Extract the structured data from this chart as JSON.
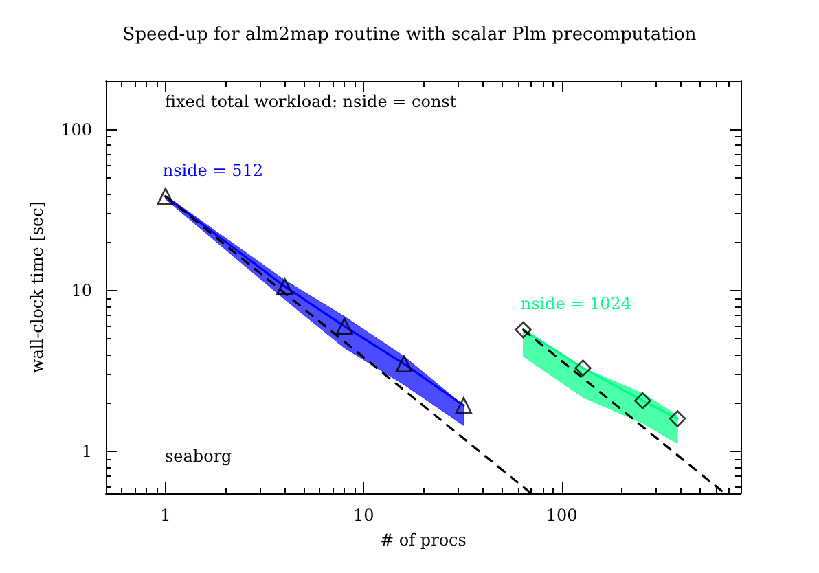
{
  "chart_data": {
    "type": "scatter",
    "title": "Speed-up for alm2map routine with scalar Plm precomputation",
    "xlabel": "# of procs",
    "ylabel": "wall-clock time [sec]",
    "log": "xy",
    "xlim": [
      0.5,
      800
    ],
    "ylim": [
      0.55,
      200
    ],
    "xticks": [
      1,
      10,
      100
    ],
    "yticks": [
      1,
      10,
      100
    ],
    "grid": false,
    "legend": false,
    "annotations": [
      "fixed total workload: nside = const",
      "seaborg"
    ],
    "series": [
      {
        "name": "nside = 512",
        "type": "line",
        "color": "#0000ff",
        "marker": "none",
        "x": [
          1,
          4,
          8,
          16,
          32
        ],
        "values": [
          38.5,
          10.6,
          6.0,
          3.5,
          1.93
        ],
        "lower": [
          37,
          8.8,
          4.4,
          2.6,
          1.45
        ],
        "upper": [
          39,
          11.6,
          6.9,
          3.9,
          1.93
        ]
      },
      {
        "color": "#000000",
        "marker": "triangle",
        "x": [
          1,
          4,
          8,
          16,
          32
        ],
        "values": [
          38.5,
          10.6,
          6.0,
          3.5,
          1.93
        ]
      },
      {
        "name": "nside = 1024",
        "type": "line",
        "color": "#00ff88",
        "marker": "none",
        "x": [
          64,
          128,
          256,
          384
        ],
        "values": [
          5.7,
          3.3,
          2.07,
          1.6
        ],
        "lower": [
          3.9,
          2.17,
          1.5,
          1.12
        ],
        "upper": [
          5.7,
          3.3,
          2.3,
          1.67
        ]
      },
      {
        "color": "#000000",
        "marker": "diamond",
        "x": [
          64,
          128,
          256,
          384
        ],
        "values": [
          5.7,
          3.3,
          2.07,
          1.6
        ]
      },
      {
        "type": "line",
        "line_style": "dashed",
        "color": "#000000",
        "x": [
          1,
          70
        ],
        "values": [
          38.5,
          0.55
        ]
      },
      {
        "type": "line",
        "line_style": "dashed",
        "color": "#000000",
        "x": [
          64,
          660
        ],
        "values": [
          5.7,
          0.553
        ]
      }
    ]
  }
}
